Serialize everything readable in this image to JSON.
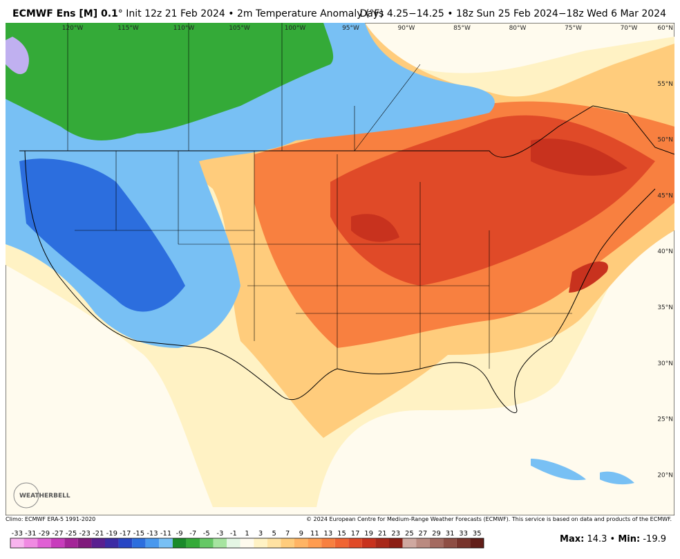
{
  "header": {
    "model": "ECMWF Ens [M] 0.1",
    "init": "° Init 12z 21 Feb 2024 • 2m Temperature Anomaly (°F)",
    "period": "Days 4.25−14.25 • 18z Sun 25 Feb 2024−18z Wed 6 Mar 2024"
  },
  "map": {
    "longitudes": [
      "120°W",
      "115°W",
      "110°W",
      "105°W",
      "100°W",
      "95°W",
      "90°W",
      "85°W",
      "80°W",
      "75°W",
      "70°W"
    ],
    "latitudes": [
      "60°N",
      "55°N",
      "50°N",
      "45°N",
      "40°N",
      "35°N",
      "30°N",
      "25°N",
      "20°N"
    ],
    "logo": "WEATHERBELL"
  },
  "footer": {
    "climo": "Climo: ECMWF ERA-5 1991-2020",
    "copyright": "© 2024 European Centre for Medium-Range Weather Forecasts (ECMWF). This service is based on data and products of the ECMWF."
  },
  "colorbar": {
    "ticks": [
      -33,
      -31,
      -29,
      -27,
      -25,
      -23,
      -21,
      -19,
      -17,
      -15,
      -13,
      -11,
      -9,
      -7,
      -5,
      -3,
      -1,
      1,
      3,
      5,
      7,
      9,
      11,
      13,
      15,
      17,
      19,
      21,
      23,
      25,
      27,
      29,
      31,
      33,
      35
    ],
    "colors": [
      "#f8b4ee",
      "#f08ae2",
      "#e060d4",
      "#c83cbc",
      "#a42498",
      "#801a7c",
      "#5a2090",
      "#3c2ca4",
      "#2846c4",
      "#2c6ede",
      "#4898ee",
      "#78c0f4",
      "#1a8a2a",
      "#34aa38",
      "#66c866",
      "#a6e4a0",
      "#e4f6e4",
      "#fffbee",
      "#fff2c4",
      "#ffe2a2",
      "#ffcc7c",
      "#ffb464",
      "#ff9c50",
      "#f88040",
      "#f06432",
      "#e04a28",
      "#c8321e",
      "#a8281a",
      "#8c1e14",
      "#cfa8a0",
      "#ba8a80",
      "#a46a60",
      "#8e4e44",
      "#78342c",
      "#621e18"
    ]
  },
  "stats": {
    "max_label": "Max:",
    "max": "14.3",
    "sep": "•",
    "min_label": "Min:",
    "min": "-19.9"
  }
}
